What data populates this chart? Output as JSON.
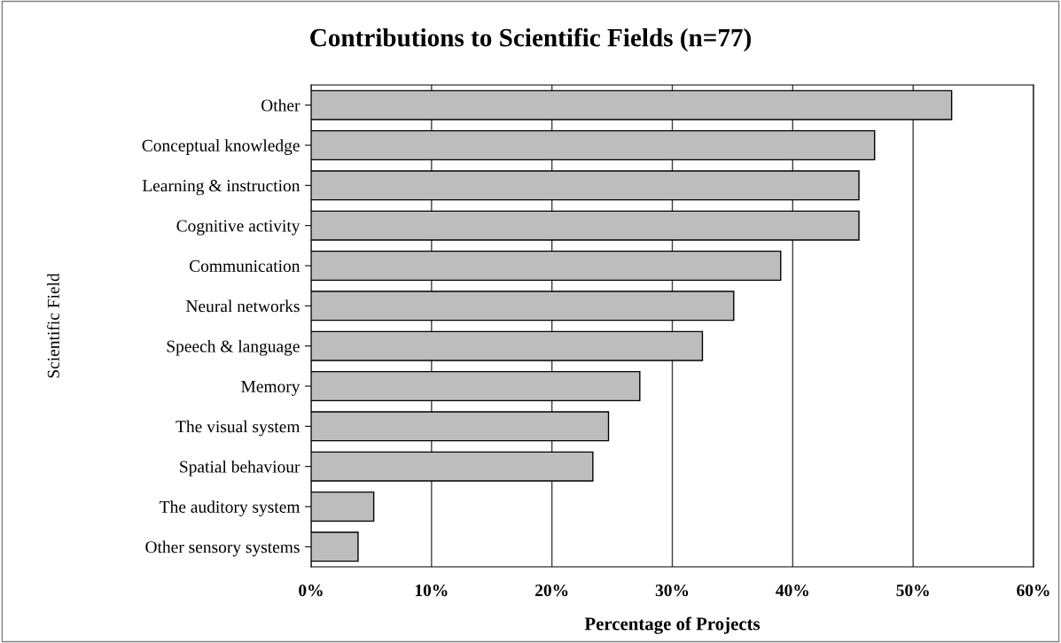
{
  "chart_data": {
    "type": "bar",
    "orientation": "horizontal",
    "title": "Contributions to Scientific Fields (n=77)",
    "xlabel": "Percentage of Projects",
    "ylabel": "Scientific Field",
    "categories": [
      "Other",
      "Conceptual knowledge",
      "Learning & instruction",
      "Cognitive activity",
      "Communication",
      "Neural networks",
      "Speech & language",
      "Memory",
      "The visual system",
      "Spatial behaviour",
      "The auditory system",
      "Other sensory systems"
    ],
    "values": [
      53.2,
      46.8,
      45.5,
      45.5,
      39.0,
      35.1,
      32.5,
      27.3,
      24.7,
      23.4,
      5.2,
      3.9
    ],
    "color": "#bdbdbd",
    "xlim": [
      0,
      60
    ],
    "xticks": [
      {
        "value": 0,
        "label": "0%"
      },
      {
        "value": 10,
        "label": "10%"
      },
      {
        "value": 20,
        "label": "20%"
      },
      {
        "value": 30,
        "label": "30%"
      },
      {
        "value": 40,
        "label": "40%"
      },
      {
        "value": 50,
        "label": "50%"
      },
      {
        "value": 60,
        "label": "60%"
      }
    ],
    "grid": "x",
    "legend": false
  }
}
